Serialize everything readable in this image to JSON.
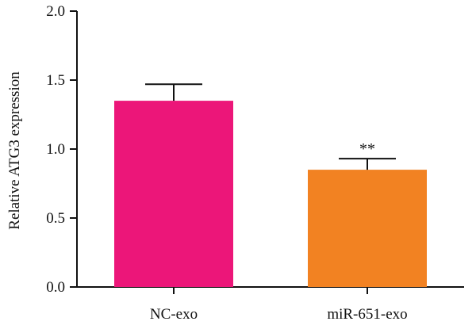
{
  "chart_data": {
    "type": "bar",
    "categories": [
      "NC-exo",
      "miR-651-exo"
    ],
    "values": [
      1.35,
      0.85
    ],
    "errors": [
      0.12,
      0.08
    ],
    "colors": [
      "#ec1679",
      "#f28222"
    ],
    "annotations": [
      "",
      "**"
    ],
    "title": "",
    "xlabel": "",
    "ylabel": "Relative ATG3 expression",
    "ylim": [
      0,
      2.0
    ],
    "yticks": [
      "0.0",
      "0.5",
      "1.0",
      "1.5",
      "2.0"
    ],
    "grid": false
  }
}
